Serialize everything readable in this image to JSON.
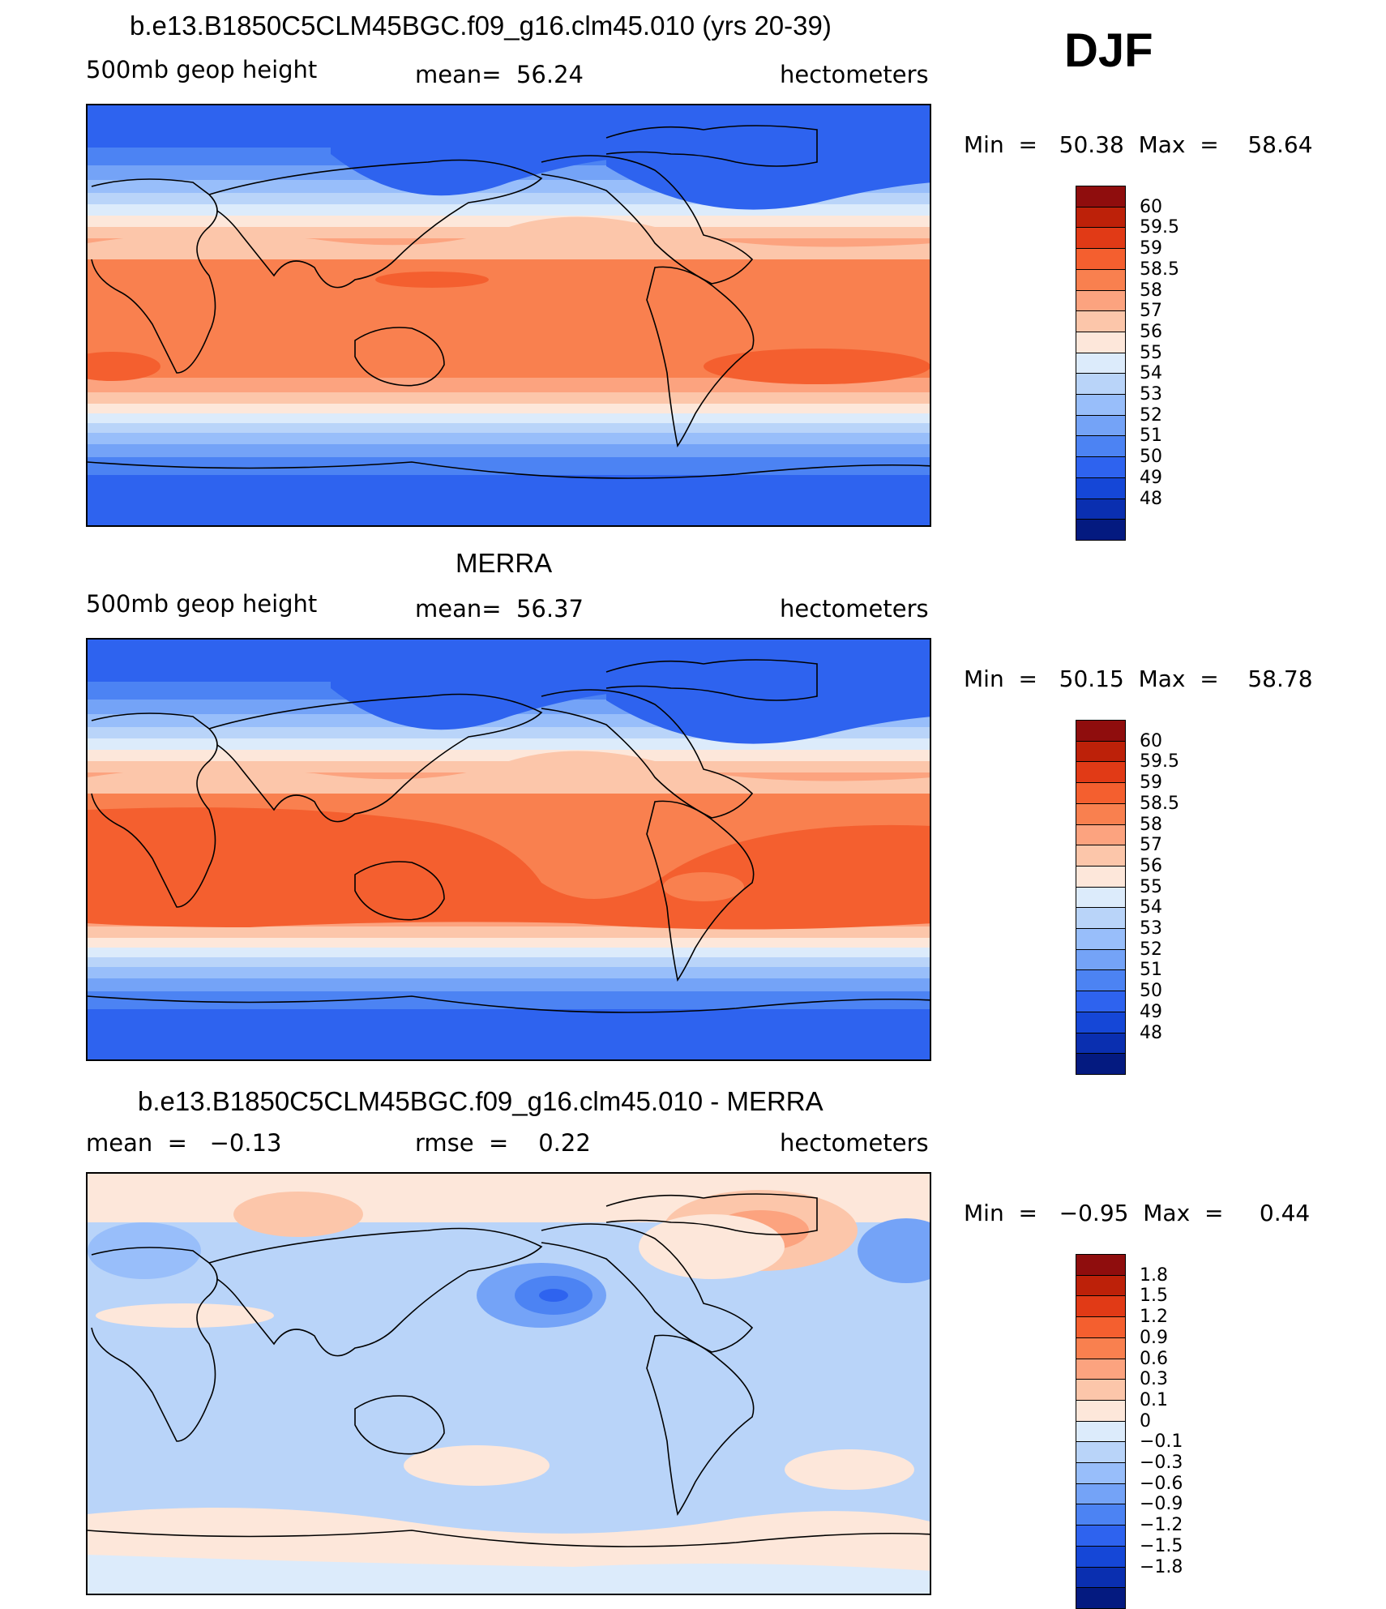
{
  "season": "DJF",
  "colors": {
    "positive": [
      "#fde7da",
      "#fcc6aa",
      "#fca37f",
      "#f9804f",
      "#f45f2f",
      "#e13a16",
      "#bd2109",
      "#8f0d0d"
    ],
    "negative": [
      "#dcebfb",
      "#b9d4f9",
      "#98befa",
      "#74a3f7",
      "#4c83f3",
      "#2e63ef",
      "#1547d7",
      "#0a2fb0",
      "#041a80"
    ],
    "coastline": "#000000"
  },
  "panels": [
    {
      "title": "b.e13.B1850C5CLM45BGC.f09_g16.clm45.010 (yrs 20-39)",
      "left_label": "500mb geop height",
      "mid_label": "mean=  56.24",
      "right_label": "hectometers",
      "min_max": "Min  =   50.38  Max  =    58.64",
      "colorbar_labels": [
        "60",
        "59.5",
        "59",
        "58.5",
        "58",
        "57",
        "56",
        "55",
        "54",
        "53",
        "52",
        "51",
        "50",
        "49",
        "48"
      ]
    },
    {
      "title": "MERRA",
      "left_label": "500mb geop height",
      "mid_label": "mean=  56.37",
      "right_label": "hectometers",
      "min_max": "Min  =   50.15  Max  =    58.78",
      "colorbar_labels": [
        "60",
        "59.5",
        "59",
        "58.5",
        "58",
        "57",
        "56",
        "55",
        "54",
        "53",
        "52",
        "51",
        "50",
        "49",
        "48"
      ]
    },
    {
      "title": "b.e13.B1850C5CLM45BGC.f09_g16.clm45.010 - MERRA",
      "left_label": "mean  =   −0.13",
      "mid_label": "rmse  =    0.22",
      "right_label": "hectometers",
      "min_max": "Min  =   −0.95  Max  =     0.44",
      "colorbar_labels": [
        "1.8",
        "1.5",
        "1.2",
        "0.9",
        "0.6",
        "0.3",
        "0.1",
        "0",
        "−0.1",
        "−0.3",
        "−0.6",
        "−0.9",
        "−1.2",
        "−1.5",
        "−1.8"
      ]
    }
  ]
}
